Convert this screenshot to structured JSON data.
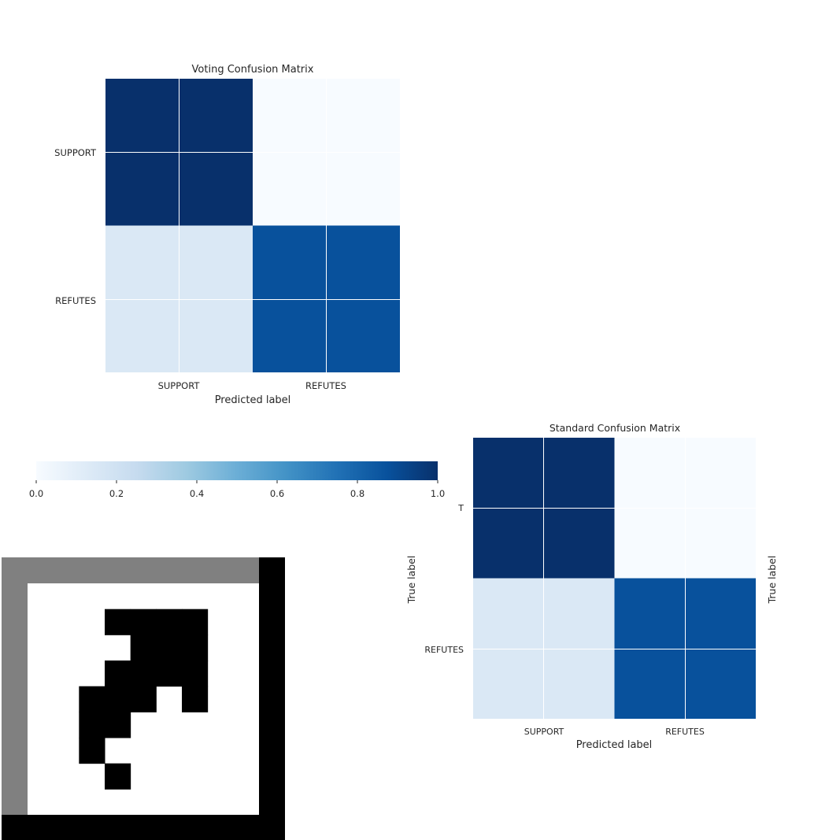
{
  "chart_data": [
    {
      "type": "heatmap",
      "title": "Voting Confusion Matrix",
      "xlabel": "Predicted label",
      "ylabel": "",
      "xticklabels": [
        "SUPPORT",
        "REFUTES"
      ],
      "yticklabels": [
        "SUPPORT",
        "REFUTES"
      ],
      "values": [
        [
          1.0,
          0.0
        ],
        [
          0.15,
          0.85
        ]
      ],
      "colormap": "Blues",
      "vlim": [
        0,
        1
      ]
    },
    {
      "type": "heatmap",
      "title": "Standard Confusion Matrix",
      "xlabel": "Predicted label",
      "ylabel": "True label",
      "ylabel_right": "True label",
      "xticklabels": [
        "SUPPORT",
        "REFUTES"
      ],
      "yticklabels": [
        "T",
        "REFUTES"
      ],
      "values": [
        [
          1.0,
          0.0
        ],
        [
          0.15,
          0.85
        ]
      ],
      "colormap": "Blues",
      "vlim": [
        0,
        1
      ]
    },
    {
      "type": "colorbar",
      "colormap": "Blues",
      "range": [
        0.0,
        1.0
      ],
      "ticklabels": [
        "0.0",
        "0.2",
        "0.4",
        "0.6",
        "0.8",
        "1.0"
      ]
    }
  ],
  "colors": {
    "blues_dark": "#08306b",
    "blues_mid": "#08519c",
    "blues_light": "#dae8f5",
    "blues_white": "#f7fbff",
    "grid_line": "#ffffff",
    "marker_gray": "#808080",
    "marker_black": "#000000"
  },
  "marker": {
    "grid": [
      [
        0,
        0,
        0,
        0,
        0,
        0,
        0,
        0,
        0
      ],
      [
        0,
        0,
        0,
        1,
        1,
        1,
        1,
        0,
        0
      ],
      [
        0,
        0,
        0,
        0,
        1,
        1,
        1,
        0,
        0
      ],
      [
        0,
        0,
        0,
        1,
        1,
        1,
        1,
        0,
        0
      ],
      [
        0,
        0,
        1,
        1,
        1,
        0,
        1,
        0,
        0
      ],
      [
        0,
        0,
        1,
        1,
        0,
        0,
        0,
        0,
        0
      ],
      [
        0,
        0,
        1,
        0,
        0,
        0,
        0,
        0,
        0
      ],
      [
        0,
        0,
        0,
        1,
        0,
        0,
        0,
        0,
        0
      ],
      [
        0,
        0,
        0,
        0,
        0,
        0,
        0,
        0,
        0
      ]
    ]
  }
}
